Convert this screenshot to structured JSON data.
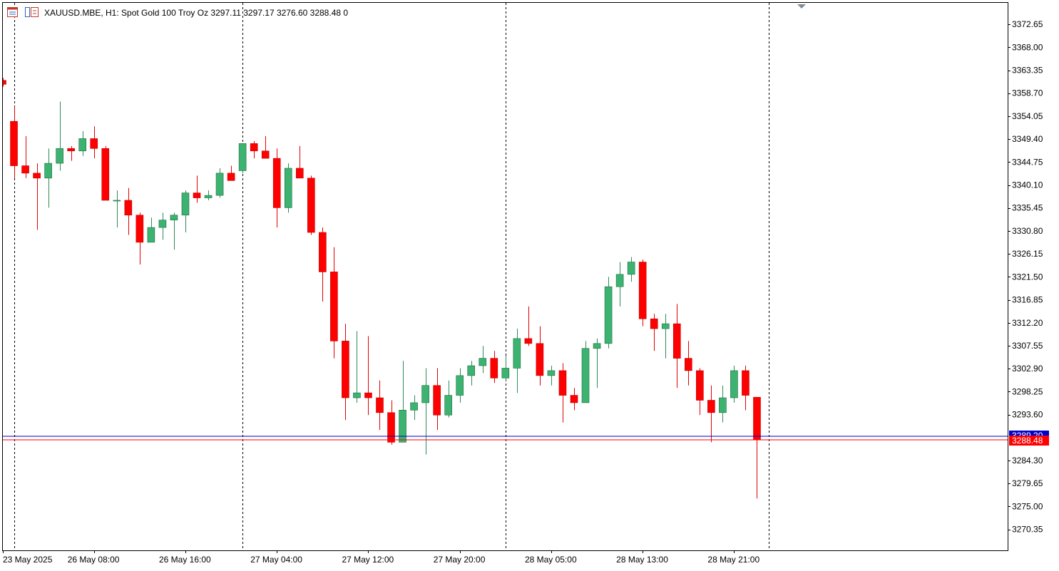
{
  "header": {
    "symbol_info": "XAUUSD.MBE, H1:  Spot Gold 100 Troy Oz  3297.11 3297.17 3276.60 3288.48  0",
    "icons": [
      "chart-window-icon",
      "symbol-properties-icon"
    ]
  },
  "colors": {
    "bull": "#3cb371",
    "bear": "#ff0000",
    "wick_bull": "#2e8b57",
    "wick_bear": "#e00000",
    "bid_line": "#ff0000",
    "ask_line": "#0000cc",
    "axis_text": "#000000",
    "frame": "#000000"
  },
  "chart_data": {
    "type": "candlestick",
    "symbol": "XAUUSD.MBE",
    "timeframe": "H1",
    "ylim": [
      3266.1,
      3377.0
    ],
    "y_ticks": [
      "3372.65",
      "3368.00",
      "3363.35",
      "3358.70",
      "3354.05",
      "3349.40",
      "3344.75",
      "3340.10",
      "3335.45",
      "3330.80",
      "3326.15",
      "3321.50",
      "3316.85",
      "3312.20",
      "3307.55",
      "3302.90",
      "3298.25",
      "3293.60",
      "3288.48",
      "3284.30",
      "3279.65",
      "3275.00",
      "3270.35"
    ],
    "x_labels": [
      {
        "label": "23 May 2025",
        "index": 0
      },
      {
        "label": "26 May 08:00",
        "index": 8
      },
      {
        "label": "26 May 16:00",
        "index": 16
      },
      {
        "label": "27 May 04:00",
        "index": 24
      },
      {
        "label": "27 May 12:00",
        "index": 32
      },
      {
        "label": "27 May 20:00",
        "index": 40
      },
      {
        "label": "28 May 05:00",
        "index": 48
      },
      {
        "label": "28 May 13:00",
        "index": 56
      },
      {
        "label": "28 May 21:00",
        "index": 64
      }
    ],
    "separators": [
      1,
      21,
      44,
      67
    ],
    "bid": 3288.48,
    "ask": 3289.2,
    "bid_label": "3288.48",
    "ask_label": "3289.20",
    "candles": [
      [
        3361.3,
        3361.8,
        3360.0,
        3360.5
      ],
      [
        3353.0,
        3356.0,
        3341.5,
        3344.0
      ],
      [
        3344.0,
        3350.0,
        3341.5,
        3342.5
      ],
      [
        3342.5,
        3344.5,
        3331.0,
        3341.5
      ],
      [
        3341.5,
        3347.5,
        3335.5,
        3344.5
      ],
      [
        3344.5,
        3357.0,
        3343.0,
        3347.5
      ],
      [
        3347.5,
        3348.0,
        3345.0,
        3347.0
      ],
      [
        3347.0,
        3351.0,
        3346.0,
        3349.5
      ],
      [
        3349.5,
        3352.0,
        3345.5,
        3347.5
      ],
      [
        3347.5,
        3348.0,
        3337.0,
        3337.0
      ],
      [
        3337.0,
        3339.0,
        3331.5,
        3337.0
      ],
      [
        3337.0,
        3339.5,
        3330.0,
        3334.0
      ],
      [
        3334.0,
        3334.5,
        3324.0,
        3328.5
      ],
      [
        3328.5,
        3333.5,
        3328.5,
        3331.5
      ],
      [
        3331.5,
        3334.5,
        3329.0,
        3333.0
      ],
      [
        3333.0,
        3334.5,
        3327.0,
        3334.0
      ],
      [
        3334.0,
        3339.0,
        3330.5,
        3338.5
      ],
      [
        3338.5,
        3342.0,
        3336.5,
        3337.5
      ],
      [
        3337.5,
        3339.0,
        3337.0,
        3338.0
      ],
      [
        3338.0,
        3343.5,
        3337.5,
        3342.5
      ],
      [
        3342.5,
        3344.0,
        3341.5,
        3341.0
      ],
      [
        3343.0,
        3348.5,
        3342.5,
        3348.5
      ],
      [
        3348.5,
        3349.0,
        3345.5,
        3347.0
      ],
      [
        3347.0,
        3350.0,
        3345.5,
        3345.5
      ],
      [
        3345.5,
        3347.5,
        3331.5,
        3335.5
      ],
      [
        3335.5,
        3344.5,
        3334.5,
        3343.5
      ],
      [
        3343.5,
        3348.0,
        3341.5,
        3341.5
      ],
      [
        3341.5,
        3342.0,
        3330.0,
        3330.5
      ],
      [
        3330.5,
        3331.5,
        3316.5,
        3322.5
      ],
      [
        3322.5,
        3327.5,
        3305.0,
        3308.5
      ],
      [
        3308.5,
        3312.0,
        3292.5,
        3297.0
      ],
      [
        3297.0,
        3310.5,
        3296.0,
        3298.0
      ],
      [
        3298.0,
        3309.5,
        3293.5,
        3297.0
      ],
      [
        3297.0,
        3300.5,
        3290.5,
        3294.0
      ],
      [
        3294.0,
        3296.5,
        3287.5,
        3288.0
      ],
      [
        3288.0,
        3304.5,
        3288.0,
        3294.5
      ],
      [
        3294.5,
        3297.5,
        3292.5,
        3296.0
      ],
      [
        3296.0,
        3303.0,
        3285.5,
        3299.5
      ],
      [
        3299.5,
        3303.0,
        3290.5,
        3293.5
      ],
      [
        3293.5,
        3300.5,
        3293.0,
        3297.5
      ],
      [
        3297.5,
        3303.0,
        3296.0,
        3301.5
      ],
      [
        3301.5,
        3304.5,
        3299.5,
        3303.5
      ],
      [
        3303.5,
        3307.5,
        3302.0,
        3305.0
      ],
      [
        3305.0,
        3306.5,
        3300.0,
        3301.0
      ],
      [
        3301.0,
        3305.5,
        3300.5,
        3303.0
      ],
      [
        3303.0,
        3311.0,
        3298.0,
        3309.0
      ],
      [
        3309.0,
        3315.5,
        3307.5,
        3308.0
      ],
      [
        3308.0,
        3311.5,
        3299.5,
        3301.5
      ],
      [
        3301.5,
        3303.5,
        3299.5,
        3302.5
      ],
      [
        3302.5,
        3304.0,
        3292.0,
        3297.5
      ],
      [
        3297.5,
        3299.0,
        3294.5,
        3296.0
      ],
      [
        3296.0,
        3308.5,
        3296.0,
        3307.0
      ],
      [
        3307.0,
        3309.0,
        3299.0,
        3308.0
      ],
      [
        3308.0,
        3321.5,
        3307.0,
        3319.5
      ],
      [
        3319.5,
        3324.5,
        3315.5,
        3322.0
      ],
      [
        3322.0,
        3325.5,
        3320.5,
        3324.5
      ],
      [
        3324.5,
        3325.0,
        3311.5,
        3313.0
      ],
      [
        3313.0,
        3314.0,
        3306.5,
        3311.0
      ],
      [
        3311.0,
        3314.0,
        3305.0,
        3312.0
      ],
      [
        3312.0,
        3316.0,
        3299.0,
        3305.0
      ],
      [
        3305.0,
        3308.5,
        3299.5,
        3302.5
      ],
      [
        3302.5,
        3303.0,
        3293.5,
        3296.5
      ],
      [
        3296.5,
        3299.5,
        3288.0,
        3294.0
      ],
      [
        3294.0,
        3299.5,
        3292.0,
        3297.0
      ],
      [
        3297.0,
        3303.5,
        3296.0,
        3302.5
      ],
      [
        3302.5,
        3303.5,
        3294.5,
        3297.5
      ],
      [
        3297.11,
        3297.17,
        3276.6,
        3288.48
      ]
    ]
  }
}
